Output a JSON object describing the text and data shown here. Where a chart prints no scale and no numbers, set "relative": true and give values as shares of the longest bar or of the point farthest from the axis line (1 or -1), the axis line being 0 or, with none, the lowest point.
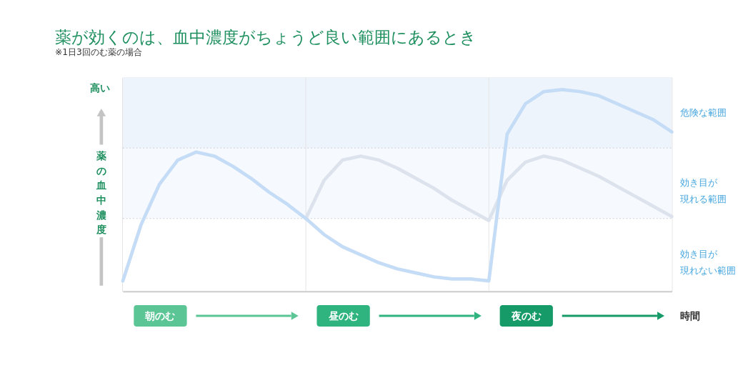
{
  "chart_data": {
    "type": "line",
    "relative": true,
    "title": "薬が効くのは、血中濃度がちょうど良い範囲にあるとき",
    "subtitle": "※1日3回のむ薬の場合",
    "xlabel": "時間",
    "ylabel": "薬の血中濃度",
    "annotations": [
      "高い",
      "朝のむ",
      "昼のむ",
      "夜のむ"
    ],
    "categories": [
      null,
      null,
      null,
      null,
      null,
      null,
      null,
      null,
      null,
      null,
      null,
      null,
      null,
      null,
      null,
      null,
      null,
      null,
      null,
      null,
      null,
      null,
      null,
      null,
      null,
      null,
      null,
      null,
      null,
      null,
      null
    ],
    "series": [
      {
        "color": "#c5dcf6",
        "values": [
          0.05,
          0.33,
          0.53,
          0.65,
          0.69,
          0.67,
          0.62,
          0.56,
          0.49,
          0.43,
          0.36,
          0.28,
          0.22,
          0.18,
          0.14,
          0.11,
          0.09,
          0.07,
          0.06,
          0.06,
          0.05,
          0.78,
          0.93,
          0.99,
          1.0,
          0.99,
          0.97,
          0.93,
          0.89,
          0.85,
          0.79
        ]
      },
      {
        "color": "#dde3ec",
        "values": [
          null,
          null,
          null,
          null,
          null,
          null,
          null,
          null,
          null,
          null,
          0.36,
          0.55,
          0.65,
          0.67,
          0.65,
          0.61,
          0.56,
          0.51,
          0.45,
          0.4,
          0.35,
          0.55,
          0.64,
          0.67,
          0.65,
          0.61,
          0.57,
          0.52,
          0.47,
          0.42,
          0.37
        ]
      }
    ],
    "bands": [
      {
        "axis": "y",
        "from": 0.71,
        "to": 1.06,
        "label": "危険な範囲",
        "color": "#eef4fc"
      },
      {
        "axis": "y",
        "from": 0.36,
        "to": 0.71,
        "label": "効き目が現れる範囲",
        "color": "#f6f9fe"
      },
      {
        "axis": "y",
        "from": 0,
        "to": 0.36,
        "label": "効き目が現れない範囲",
        "color": "#ffffff"
      }
    ],
    "ref_lines": [
      {
        "axis": "y",
        "value": 0.71,
        "line_style": "dotted",
        "color": "#c8ccd2"
      },
      {
        "axis": "y",
        "value": 0.36,
        "line_style": "dotted",
        "color": "#c8ccd2"
      }
    ],
    "marker": "none",
    "line_style": "solid"
  }
}
